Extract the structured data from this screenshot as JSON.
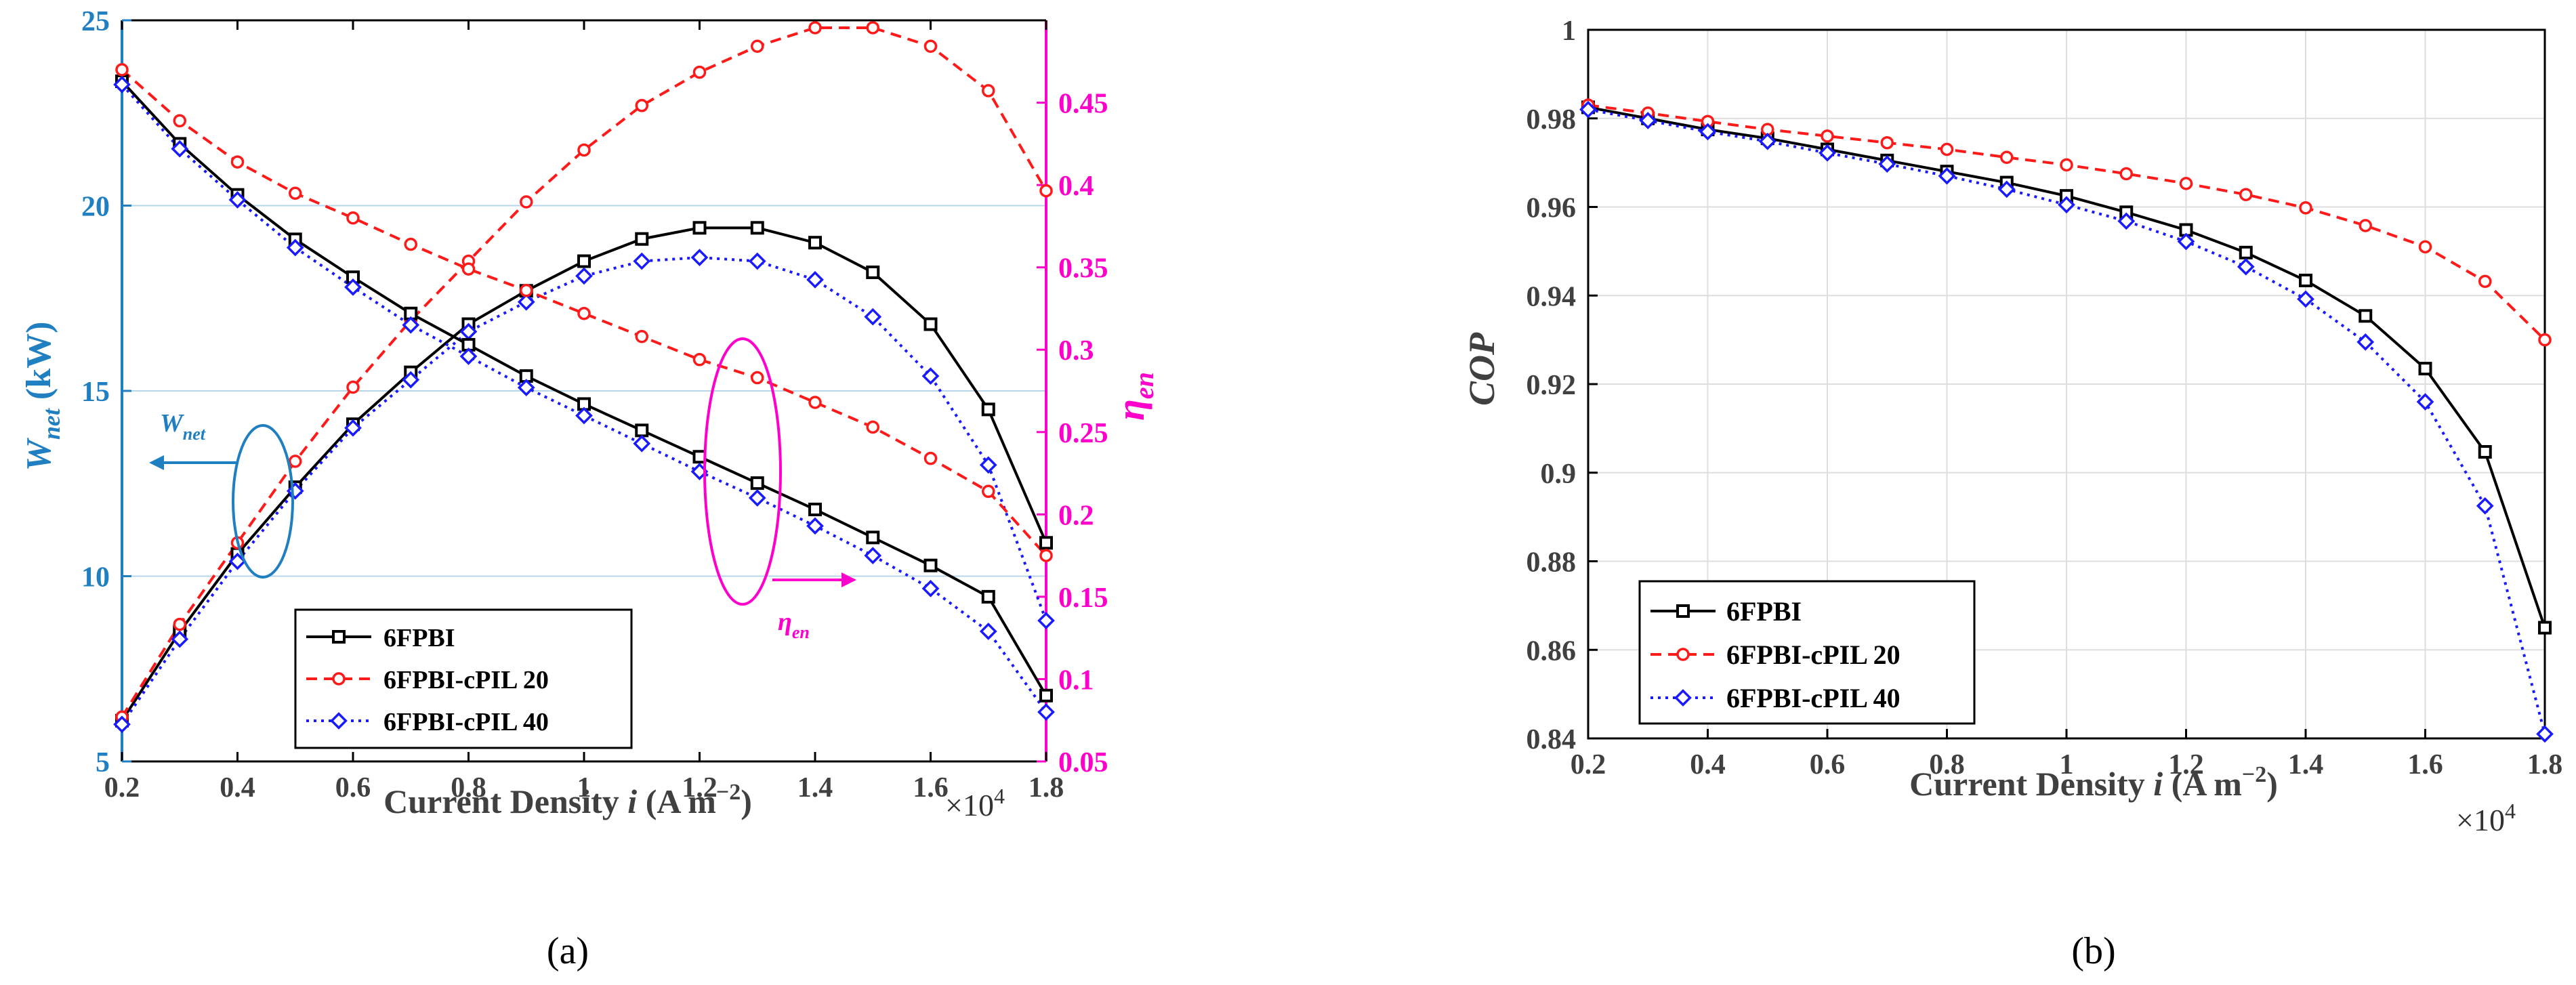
{
  "chart_data": [
    {
      "type": "line",
      "panel_label": "(a)",
      "xlabel_main": "Current Density ",
      "xlabel_var": "i",
      "xlabel_units": " (A m",
      "xlabel_exp": "−2",
      "xlabel_close": ")",
      "x_multiplier_base": "×10",
      "x_multiplier_exp": "4",
      "ylabel_left_main": "W",
      "ylabel_left_sub": "net",
      "ylabel_left_units": " (kW)",
      "ylabel_right_main": "η",
      "ylabel_right_sub": "en",
      "xlim": [
        0.2,
        1.8
      ],
      "ylim_left": [
        5,
        25
      ],
      "ylim_right": [
        0.05,
        0.5
      ],
      "x_ticks": [
        "0.2",
        "0.4",
        "0.6",
        "0.8",
        "1",
        "1.2",
        "1.4",
        "1.6",
        "1.8"
      ],
      "y_left_ticks": [
        "5",
        "10",
        "15",
        "20",
        "25"
      ],
      "y_right_ticks": [
        "0.05",
        "0.1",
        "0.15",
        "0.2",
        "0.25",
        "0.3",
        "0.35",
        "0.4",
        "0.45"
      ],
      "annotations": [
        {
          "main": "W",
          "sub": "net",
          "color": "#1f7fc0",
          "side": "left"
        },
        {
          "main": "η",
          "sub": "en",
          "color": "#ff00cc",
          "side": "right"
        }
      ],
      "x": [
        0.2,
        0.3,
        0.4,
        0.5,
        0.6,
        0.7,
        0.8,
        0.9,
        1.0,
        1.1,
        1.2,
        1.3,
        1.4,
        1.5,
        1.6,
        1.7,
        1.8
      ],
      "legend": [
        "6FPBI",
        "6FPBI-cPIL 20",
        "6FPBI-cPIL 40"
      ],
      "series": [
        {
          "name": "6FPBI",
          "axis": "left",
          "kind": "power",
          "color": "#000000",
          "marker": "square",
          "values": [
            6.1,
            8.5,
            10.6,
            12.4,
            14.1,
            15.5,
            16.8,
            17.7,
            18.5,
            19.1,
            19.4,
            19.4,
            19.0,
            18.2,
            16.8,
            14.5,
            10.9
          ]
        },
        {
          "name": "6FPBI-cPIL 20",
          "axis": "left",
          "kind": "power",
          "color": "#ff1a1a",
          "marker": "circle",
          "values": [
            6.2,
            8.7,
            10.9,
            13.1,
            15.1,
            16.9,
            18.5,
            20.1,
            21.5,
            22.7,
            23.6,
            24.3,
            24.8,
            24.8,
            24.3,
            23.1,
            20.4
          ]
        },
        {
          "name": "6FPBI-cPIL 40",
          "axis": "left",
          "kind": "power",
          "color": "#1a1aff",
          "marker": "diamond",
          "values": [
            6.0,
            8.3,
            10.4,
            12.3,
            14.0,
            15.3,
            16.6,
            17.4,
            18.1,
            18.5,
            18.6,
            18.5,
            18.0,
            17.0,
            15.4,
            13.0,
            8.8
          ]
        },
        {
          "name": "6FPBI",
          "axis": "right",
          "kind": "efficiency",
          "color": "#000000",
          "marker": "square",
          "values": [
            0.463,
            0.425,
            0.394,
            0.367,
            0.344,
            0.322,
            0.303,
            0.284,
            0.267,
            0.251,
            0.235,
            0.219,
            0.203,
            0.186,
            0.169,
            0.15,
            0.09
          ]
        },
        {
          "name": "6FPBI-cPIL 20",
          "axis": "right",
          "kind": "efficiency",
          "color": "#ff1a1a",
          "marker": "circle",
          "values": [
            0.47,
            0.439,
            0.414,
            0.395,
            0.38,
            0.364,
            0.349,
            0.336,
            0.322,
            0.308,
            0.294,
            0.283,
            0.268,
            0.253,
            0.234,
            0.214,
            0.175
          ]
        },
        {
          "name": "6FPBI-cPIL 40",
          "axis": "right",
          "kind": "efficiency",
          "color": "#1a1aff",
          "marker": "diamond",
          "values": [
            0.461,
            0.422,
            0.391,
            0.362,
            0.338,
            0.315,
            0.296,
            0.277,
            0.26,
            0.243,
            0.226,
            0.21,
            0.193,
            0.175,
            0.155,
            0.129,
            0.08
          ]
        }
      ]
    },
    {
      "type": "line",
      "panel_label": "(b)",
      "xlabel_main": "Current Density ",
      "xlabel_var": "i",
      "xlabel_units": " (A m",
      "xlabel_exp": "−2",
      "xlabel_close": ")",
      "x_multiplier_base": "×10",
      "x_multiplier_exp": "4",
      "ylabel": "COP",
      "xlim": [
        0.2,
        1.8
      ],
      "ylim": [
        0.84,
        1.0
      ],
      "x_ticks": [
        "0.2",
        "0.4",
        "0.6",
        "0.8",
        "1",
        "1.2",
        "1.4",
        "1.6",
        "1.8"
      ],
      "y_ticks": [
        "0.84",
        "0.86",
        "0.88",
        "0.9",
        "0.92",
        "0.94",
        "0.96",
        "0.98",
        "1"
      ],
      "grid": true,
      "x": [
        0.2,
        0.3,
        0.4,
        0.5,
        0.6,
        0.7,
        0.8,
        0.9,
        1.0,
        1.1,
        1.2,
        1.3,
        1.4,
        1.5,
        1.6,
        1.7,
        1.8
      ],
      "legend": [
        "6FPBI",
        "6FPBI-cPIL 20",
        "6FPBI-cPIL 40"
      ],
      "series": [
        {
          "name": "6FPBI",
          "color": "#000000",
          "marker": "square",
          "values": [
            0.9825,
            0.98,
            0.9775,
            0.9755,
            0.973,
            0.9705,
            0.968,
            0.9655,
            0.9625,
            0.9588,
            0.9548,
            0.9497,
            0.9434,
            0.9354,
            0.9235,
            0.9047,
            0.865
          ]
        },
        {
          "name": "6FPBI-cPIL 20",
          "color": "#ff1a1a",
          "marker": "circle",
          "values": [
            0.983,
            0.9812,
            0.9793,
            0.9775,
            0.976,
            0.9745,
            0.973,
            0.9712,
            0.9695,
            0.9675,
            0.9653,
            0.9628,
            0.9598,
            0.9558,
            0.951,
            0.9432,
            0.93
          ]
        },
        {
          "name": "6FPBI-cPIL 40",
          "color": "#1a1aff",
          "marker": "diamond",
          "values": [
            0.982,
            0.9795,
            0.977,
            0.9748,
            0.9722,
            0.9697,
            0.967,
            0.964,
            0.9605,
            0.9568,
            0.9522,
            0.9465,
            0.9392,
            0.9295,
            0.916,
            0.8925,
            0.841
          ]
        }
      ]
    }
  ]
}
